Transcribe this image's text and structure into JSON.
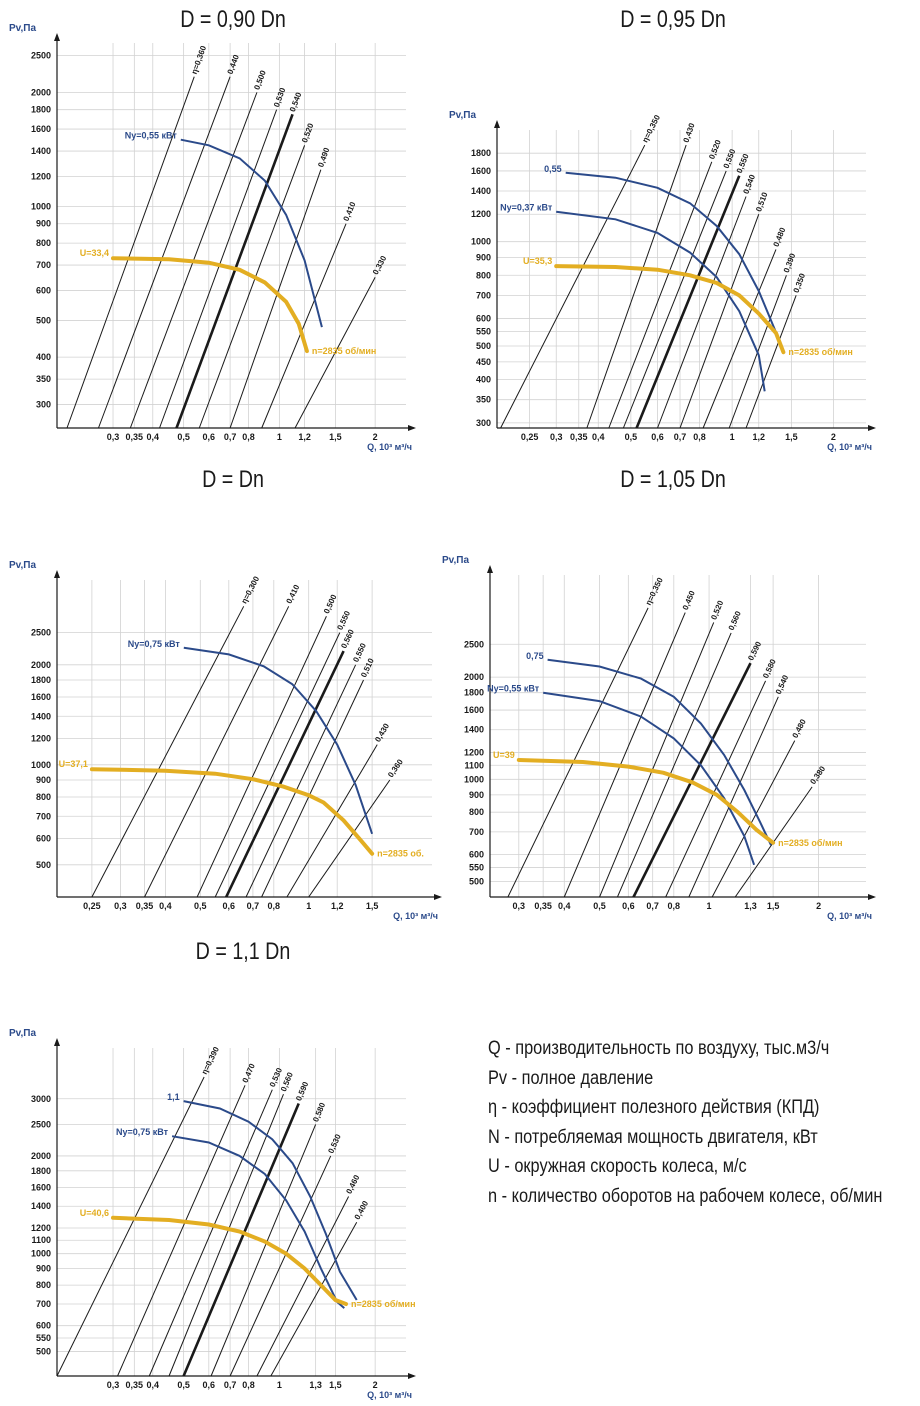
{
  "colors": {
    "axis": "#1a1a1a",
    "grid": "#d2d2d2",
    "eff": "#1a1a1a",
    "power": "#2b4a8a",
    "speed": "#e3ae22"
  },
  "legend": [
    "Q - производительность по воздуху, тыс.м3/ч",
    "Pv - полное давление",
    "η - коэффициент полезного действия (КПД)",
    "N - потребляемая мощность двигателя, кВт",
    "U - окружная скорость колеса, м/с",
    "n - количество оборотов на рабочем колесе, об/мин"
  ],
  "chart_data": [
    {
      "type": "line",
      "title": "D = 0,90 Dn",
      "ylabel": "Pv,Па",
      "xlabel": "Q, 10³ м³/ч",
      "xlim": [
        0.2,
        2.5
      ],
      "ylim": [
        260,
        2700
      ],
      "x_ticks": [
        0.3,
        0.35,
        0.4,
        0.5,
        0.6,
        0.7,
        0.8,
        1,
        1.2,
        1.5,
        2
      ],
      "x_tick_labels": [
        "0,3",
        "0,35",
        "0,4",
        "0,5",
        "0,6",
        "0,7",
        "0,8",
        "1",
        "1,2",
        "1,5",
        "2"
      ],
      "y_ticks": [
        300,
        350,
        400,
        500,
        600,
        700,
        800,
        900,
        1000,
        1200,
        1400,
        1600,
        1800,
        2000,
        2500
      ],
      "efficiency_lines": [
        {
          "label": "η=0,360",
          "x_bottom": 0.215,
          "x_top": 0.54
        },
        {
          "label": "0,440",
          "x_bottom": 0.27,
          "x_top": 0.7
        },
        {
          "label": "0,500",
          "x_bottom": 0.34,
          "x_top": 0.85
        },
        {
          "label": "0,530",
          "x_bottom": 0.42,
          "x_top": 0.98
        },
        {
          "label": "0,540",
          "x_bottom": 0.475,
          "x_top": 1.1,
          "bold": true
        },
        {
          "label": "0,520",
          "x_bottom": 0.56,
          "x_top": 1.2
        },
        {
          "label": "0,490",
          "x_bottom": 0.7,
          "x_top": 1.35
        },
        {
          "label": "0,410",
          "x_bottom": 0.88,
          "x_top": 1.62
        },
        {
          "label": "0,330",
          "x_bottom": 1.12,
          "x_top": 2.0
        }
      ],
      "efficiency_top_pv": [
        2200,
        2200,
        2000,
        1800,
        1750,
        1450,
        1250,
        900,
        650
      ],
      "power_curves": [
        {
          "label": "Ny=0,55 кВт",
          "points": [
            [
              0.49,
              1500
            ],
            [
              0.6,
              1450
            ],
            [
              0.75,
              1340
            ],
            [
              0.9,
              1170
            ],
            [
              1.05,
              950
            ],
            [
              1.2,
              720
            ],
            [
              1.36,
              480
            ]
          ]
        }
      ],
      "speed_curve": {
        "label_start": "U=33,4",
        "label_end": "n=2835 об/мин",
        "points": [
          [
            0.3,
            730
          ],
          [
            0.45,
            725
          ],
          [
            0.6,
            710
          ],
          [
            0.75,
            680
          ],
          [
            0.9,
            630
          ],
          [
            1.05,
            560
          ],
          [
            1.15,
            490
          ],
          [
            1.22,
            415
          ]
        ]
      }
    },
    {
      "type": "line",
      "title": "D = 0,95 Dn",
      "ylabel": "Pv,Па",
      "xlabel": "Q, 10³ м³/ч",
      "xlim": [
        0.2,
        2.5
      ],
      "ylim": [
        290,
        2100
      ],
      "x_ticks": [
        0.25,
        0.3,
        0.35,
        0.4,
        0.5,
        0.6,
        0.7,
        0.8,
        1,
        1.2,
        1.5,
        2
      ],
      "x_tick_labels": [
        "0,25",
        "0,3",
        "0,35",
        "0,4",
        "0,5",
        "0,6",
        "0,7",
        "0,8",
        "1",
        "1,2",
        "1,5",
        "2"
      ],
      "y_ticks": [
        300,
        350,
        400,
        450,
        500,
        550,
        600,
        700,
        800,
        900,
        1000,
        1200,
        1400,
        1600,
        1800
      ],
      "efficiency_lines": [
        {
          "label": "η=0,350",
          "x_bottom": 0.205,
          "x_top": 0.55
        },
        {
          "label": "0,430",
          "x_bottom": 0.37,
          "x_top": 0.73
        },
        {
          "label": "0,520",
          "x_bottom": 0.43,
          "x_top": 0.87
        },
        {
          "label": "0,550",
          "x_bottom": 0.475,
          "x_top": 0.96
        },
        {
          "label": "0,550",
          "x_bottom": 0.52,
          "x_top": 1.05,
          "bold": true
        },
        {
          "label": "0,540",
          "x_bottom": 0.6,
          "x_top": 1.1
        },
        {
          "label": "0,510",
          "x_bottom": 0.7,
          "x_top": 1.2
        },
        {
          "label": "0,480",
          "x_bottom": 0.82,
          "x_top": 1.35
        },
        {
          "label": "0,390",
          "x_bottom": 0.98,
          "x_top": 1.45
        },
        {
          "label": "0,350",
          "x_bottom": 1.1,
          "x_top": 1.55
        }
      ],
      "efficiency_top_pv": [
        1900,
        1900,
        1700,
        1600,
        1550,
        1350,
        1200,
        950,
        800,
        700
      ],
      "power_curves": [
        {
          "label": "0,55",
          "points": [
            [
              0.32,
              1580
            ],
            [
              0.45,
              1530
            ],
            [
              0.6,
              1430
            ],
            [
              0.75,
              1290
            ],
            [
              0.9,
              1110
            ],
            [
              1.05,
              920
            ],
            [
              1.2,
              720
            ],
            [
              1.38,
              520
            ]
          ]
        },
        {
          "label": "Ny=0,37 кВт",
          "points": [
            [
              0.3,
              1220
            ],
            [
              0.45,
              1160
            ],
            [
              0.6,
              1060
            ],
            [
              0.75,
              930
            ],
            [
              0.9,
              790
            ],
            [
              1.05,
              630
            ],
            [
              1.2,
              470
            ],
            [
              1.25,
              370
            ]
          ]
        }
      ],
      "speed_curve": {
        "label_start": "U=35,3",
        "label_end": "n=2835 об/мин",
        "points": [
          [
            0.3,
            850
          ],
          [
            0.45,
            845
          ],
          [
            0.6,
            830
          ],
          [
            0.75,
            800
          ],
          [
            0.9,
            760
          ],
          [
            1.05,
            700
          ],
          [
            1.2,
            620
          ],
          [
            1.35,
            545
          ],
          [
            1.42,
            480
          ]
        ]
      }
    },
    {
      "type": "line",
      "title": "D = Dn",
      "ylabel": "Pv,Па",
      "xlabel": "Q, 10³ м³/ч",
      "xlim": [
        0.2,
        2.2
      ],
      "ylim": [
        400,
        3600
      ],
      "x_ticks": [
        0.25,
        0.3,
        0.35,
        0.4,
        0.5,
        0.6,
        0.7,
        0.8,
        1,
        1.2,
        1.5
      ],
      "x_tick_labels": [
        "0,25",
        "0,3",
        "0,35",
        "0,4",
        "0,5",
        "0,6",
        "0,7",
        "0,8",
        "1",
        "1,2",
        "1,5"
      ],
      "y_ticks": [
        500,
        600,
        700,
        800,
        900,
        1000,
        1200,
        1400,
        1600,
        1800,
        2000,
        2500
      ],
      "efficiency_lines": [
        {
          "label": "η=0,300",
          "x_bottom": 0.25,
          "x_top": 0.66
        },
        {
          "label": "0,410",
          "x_bottom": 0.35,
          "x_top": 0.88
        },
        {
          "label": "0,500",
          "x_bottom": 0.49,
          "x_top": 1.12
        },
        {
          "label": "0,550",
          "x_bottom": 0.55,
          "x_top": 1.22
        },
        {
          "label": "0,560",
          "x_bottom": 0.59,
          "x_top": 1.25,
          "bold": true
        },
        {
          "label": "0,550",
          "x_bottom": 0.67,
          "x_top": 1.35
        },
        {
          "label": "0,510",
          "x_bottom": 0.74,
          "x_top": 1.42
        },
        {
          "label": "0,430",
          "x_bottom": 0.87,
          "x_top": 1.55
        },
        {
          "label": "0,360",
          "x_bottom": 1.0,
          "x_top": 1.68
        }
      ],
      "efficiency_top_pv": [
        3000,
        3000,
        2800,
        2500,
        2200,
        2000,
        1800,
        1150,
        900
      ],
      "power_curves": [
        {
          "label": "Ny=0,75 кВт",
          "points": [
            [
              0.45,
              2250
            ],
            [
              0.6,
              2150
            ],
            [
              0.75,
              1980
            ],
            [
              0.9,
              1750
            ],
            [
              1.05,
              1450
            ],
            [
              1.2,
              1150
            ],
            [
              1.35,
              870
            ],
            [
              1.5,
              620
            ]
          ]
        }
      ],
      "speed_curve": {
        "label_start": "U=37,1",
        "label_end": "n=2835 об.",
        "points": [
          [
            0.25,
            970
          ],
          [
            0.4,
            960
          ],
          [
            0.55,
            940
          ],
          [
            0.7,
            905
          ],
          [
            0.85,
            860
          ],
          [
            1.0,
            810
          ],
          [
            1.1,
            770
          ],
          [
            1.25,
            680
          ],
          [
            1.4,
            590
          ],
          [
            1.5,
            540
          ]
        ]
      }
    },
    {
      "type": "line",
      "title": "D = 1,05 Dn",
      "ylabel": "Pv,Па",
      "xlabel": "Q, 10³ м³/ч",
      "xlim": [
        0.25,
        2.7
      ],
      "ylim": [
        450,
        4000
      ],
      "x_ticks": [
        0.3,
        0.35,
        0.4,
        0.5,
        0.6,
        0.7,
        0.8,
        1,
        1.3,
        1.5,
        2
      ],
      "x_tick_labels": [
        "0,3",
        "0,35",
        "0,4",
        "0,5",
        "0,6",
        "0,7",
        "0,8",
        "1",
        "1,3",
        "1,5",
        "2"
      ],
      "y_ticks": [
        500,
        550,
        600,
        700,
        800,
        900,
        1000,
        1100,
        1200,
        1400,
        1600,
        1800,
        2000,
        2500
      ],
      "efficiency_lines": [
        {
          "label": "η=0,350",
          "x_bottom": 0.28,
          "x_top": 0.68
        },
        {
          "label": "0,450",
          "x_bottom": 0.4,
          "x_top": 0.86
        },
        {
          "label": "0,520",
          "x_bottom": 0.5,
          "x_top": 1.03
        },
        {
          "label": "0,560",
          "x_bottom": 0.56,
          "x_top": 1.15
        },
        {
          "label": "0,590",
          "x_bottom": 0.62,
          "x_top": 1.3,
          "bold": true
        },
        {
          "label": "0,580",
          "x_bottom": 0.76,
          "x_top": 1.43
        },
        {
          "label": "0,540",
          "x_bottom": 0.88,
          "x_top": 1.55
        },
        {
          "label": "0,480",
          "x_bottom": 1.02,
          "x_top": 1.72
        },
        {
          "label": "0,380",
          "x_bottom": 1.18,
          "x_top": 1.92
        }
      ],
      "efficiency_top_pv": [
        3200,
        3100,
        2900,
        2700,
        2200,
        1950,
        1750,
        1300,
        950
      ],
      "power_curves": [
        {
          "label": "0,75",
          "points": [
            [
              0.36,
              2250
            ],
            [
              0.5,
              2150
            ],
            [
              0.65,
              1980
            ],
            [
              0.8,
              1750
            ],
            [
              0.95,
              1460
            ],
            [
              1.1,
              1180
            ],
            [
              1.25,
              930
            ],
            [
              1.38,
              750
            ],
            [
              1.48,
              640
            ]
          ]
        },
        {
          "label": "Ny=0,55 кВт",
          "points": [
            [
              0.35,
              1800
            ],
            [
              0.5,
              1700
            ],
            [
              0.65,
              1530
            ],
            [
              0.8,
              1320
            ],
            [
              0.95,
              1100
            ],
            [
              1.1,
              880
            ],
            [
              1.25,
              680
            ],
            [
              1.33,
              560
            ]
          ]
        }
      ],
      "speed_curve": {
        "label_start": "U=39",
        "label_end": "n=2835 об/мин",
        "points": [
          [
            0.3,
            1140
          ],
          [
            0.45,
            1125
          ],
          [
            0.6,
            1090
          ],
          [
            0.75,
            1045
          ],
          [
            0.9,
            980
          ],
          [
            1.05,
            900
          ],
          [
            1.2,
            800
          ],
          [
            1.35,
            710
          ],
          [
            1.5,
            650
          ]
        ]
      }
    },
    {
      "type": "line",
      "title": "D = 1,1 Dn",
      "ylabel": "Pv,Па",
      "xlabel": "Q, 10³ м³/ч",
      "xlim": [
        0.2,
        2.5
      ],
      "ylim": [
        420,
        4300
      ],
      "x_ticks": [
        0.3,
        0.35,
        0.4,
        0.5,
        0.6,
        0.7,
        0.8,
        1,
        1.3,
        1.5,
        2
      ],
      "x_tick_labels": [
        "0,3",
        "0,35",
        "0,4",
        "0,5",
        "0,6",
        "0,7",
        "0,8",
        "1",
        "1,3",
        "1,5",
        "2"
      ],
      "y_ticks": [
        500,
        550,
        600,
        700,
        800,
        900,
        1000,
        1100,
        1200,
        1400,
        1600,
        1800,
        2000,
        2500,
        3000
      ],
      "efficiency_lines": [
        {
          "label": "η=0,390",
          "x_bottom": 0.2,
          "x_top": 0.58
        },
        {
          "label": "0,470",
          "x_bottom": 0.31,
          "x_top": 0.78
        },
        {
          "label": "0,530",
          "x_bottom": 0.39,
          "x_top": 0.95
        },
        {
          "label": "0,560",
          "x_bottom": 0.45,
          "x_top": 1.03
        },
        {
          "label": "0,590",
          "x_bottom": 0.5,
          "x_top": 1.15,
          "bold": true
        },
        {
          "label": "0,580",
          "x_bottom": 0.61,
          "x_top": 1.3
        },
        {
          "label": "0,530",
          "x_bottom": 0.7,
          "x_top": 1.45
        },
        {
          "label": "0,460",
          "x_bottom": 0.85,
          "x_top": 1.65
        },
        {
          "label": "0,400",
          "x_bottom": 0.94,
          "x_top": 1.75
        }
      ],
      "efficiency_top_pv": [
        3500,
        3300,
        3200,
        3100,
        2900,
        2500,
        2000,
        1500,
        1250
      ],
      "power_curves": [
        {
          "label": "1,1",
          "points": [
            [
              0.5,
              2950
            ],
            [
              0.65,
              2800
            ],
            [
              0.8,
              2550
            ],
            [
              0.95,
              2250
            ],
            [
              1.1,
              1900
            ],
            [
              1.25,
              1500
            ],
            [
              1.4,
              1150
            ],
            [
              1.55,
              880
            ],
            [
              1.75,
              720
            ]
          ]
        },
        {
          "label": "Ny=0,75 кВт",
          "points": [
            [
              0.46,
              2300
            ],
            [
              0.6,
              2200
            ],
            [
              0.75,
              2000
            ],
            [
              0.9,
              1760
            ],
            [
              1.05,
              1460
            ],
            [
              1.2,
              1170
            ],
            [
              1.35,
              900
            ],
            [
              1.52,
              710
            ],
            [
              1.6,
              680
            ]
          ]
        }
      ],
      "speed_curve": {
        "label_start": "U=40,6",
        "label_end": "n=2835 об/мин",
        "points": [
          [
            0.3,
            1290
          ],
          [
            0.45,
            1270
          ],
          [
            0.6,
            1230
          ],
          [
            0.75,
            1170
          ],
          [
            0.9,
            1090
          ],
          [
            1.05,
            1000
          ],
          [
            1.2,
            900
          ],
          [
            1.35,
            800
          ],
          [
            1.5,
            720
          ],
          [
            1.62,
            700
          ]
        ]
      }
    }
  ]
}
